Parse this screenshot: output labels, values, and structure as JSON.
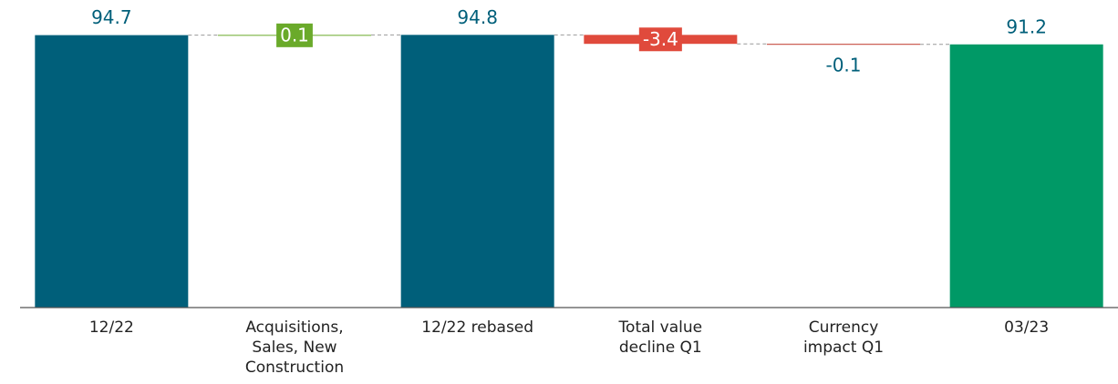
{
  "chart_data": {
    "type": "waterfall",
    "categories": [
      "12/22",
      "Acquisitions, Sales, New Construction",
      "12/22 rebased",
      "Total value decline Q1",
      "Currency impact Q1",
      "03/23"
    ],
    "values": [
      94.7,
      0.1,
      94.8,
      -3.4,
      -0.1,
      91.2
    ],
    "totals": [
      true,
      false,
      true,
      false,
      false,
      true
    ],
    "colors": [
      "#005f7a",
      "#6aaa2a",
      "#005f7a",
      "#e04a3c",
      "#c0392b",
      "#009966"
    ],
    "ylim": [
      -8.4,
      108
    ]
  }
}
